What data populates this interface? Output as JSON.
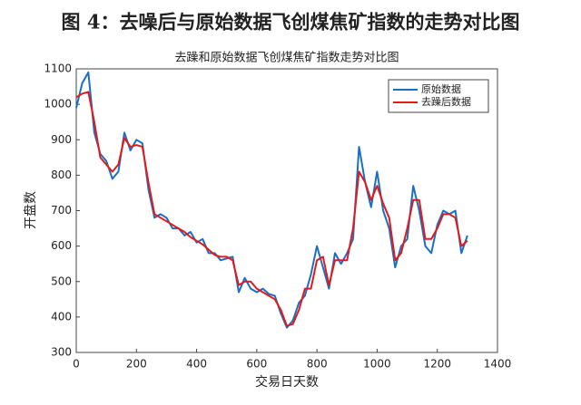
{
  "caption": "图 4：去噪后与原始数据飞创煤焦矿指数的走势对比图",
  "chart_data": {
    "type": "line",
    "title": "去躁和原始数据飞创煤焦矿指数走势对比图",
    "x_label": "交易日天数",
    "y_label": "开盘数",
    "x": [
      0,
      20,
      40,
      60,
      80,
      100,
      120,
      140,
      160,
      180,
      200,
      220,
      240,
      260,
      280,
      300,
      320,
      340,
      360,
      380,
      400,
      420,
      440,
      460,
      480,
      500,
      520,
      540,
      560,
      580,
      600,
      620,
      640,
      660,
      680,
      700,
      720,
      740,
      760,
      780,
      800,
      820,
      840,
      860,
      880,
      900,
      920,
      940,
      960,
      980,
      1000,
      1020,
      1040,
      1060,
      1080,
      1100,
      1120,
      1140,
      1160,
      1180,
      1200,
      1220,
      1240,
      1260,
      1280,
      1300
    ],
    "series": [
      {
        "name": "原始数据",
        "color": "#1a6fc4",
        "values": [
          990,
          1060,
          1090,
          920,
          860,
          840,
          790,
          810,
          920,
          870,
          900,
          890,
          760,
          680,
          690,
          680,
          650,
          650,
          630,
          640,
          610,
          620,
          580,
          580,
          560,
          565,
          570,
          470,
          510,
          480,
          470,
          480,
          465,
          460,
          410,
          370,
          390,
          440,
          460,
          520,
          600,
          540,
          480,
          580,
          550,
          580,
          620,
          880,
          780,
          710,
          810,
          700,
          650,
          540,
          600,
          620,
          770,
          700,
          600,
          580,
          660,
          700,
          690,
          700,
          580,
          630
        ]
      },
      {
        "name": "去躁后数据",
        "color": "#e3191c",
        "values": [
          1020,
          1030,
          1035,
          950,
          850,
          830,
          810,
          830,
          905,
          880,
          885,
          880,
          780,
          690,
          680,
          670,
          660,
          650,
          640,
          625,
          615,
          605,
          590,
          575,
          570,
          570,
          560,
          490,
          500,
          500,
          480,
          470,
          460,
          450,
          420,
          375,
          380,
          420,
          480,
          480,
          560,
          570,
          490,
          560,
          560,
          560,
          650,
          810,
          780,
          730,
          770,
          720,
          680,
          560,
          580,
          650,
          730,
          730,
          620,
          620,
          650,
          690,
          690,
          680,
          600,
          615
        ]
      }
    ],
    "xlim": [
      0,
      1400
    ],
    "ylim": [
      300,
      1100
    ],
    "xticks": [
      0,
      200,
      400,
      600,
      800,
      1000,
      1200,
      1400
    ],
    "yticks": [
      300,
      400,
      500,
      600,
      700,
      800,
      900,
      1000,
      1100
    ],
    "grid": false,
    "legend": "upper right"
  }
}
